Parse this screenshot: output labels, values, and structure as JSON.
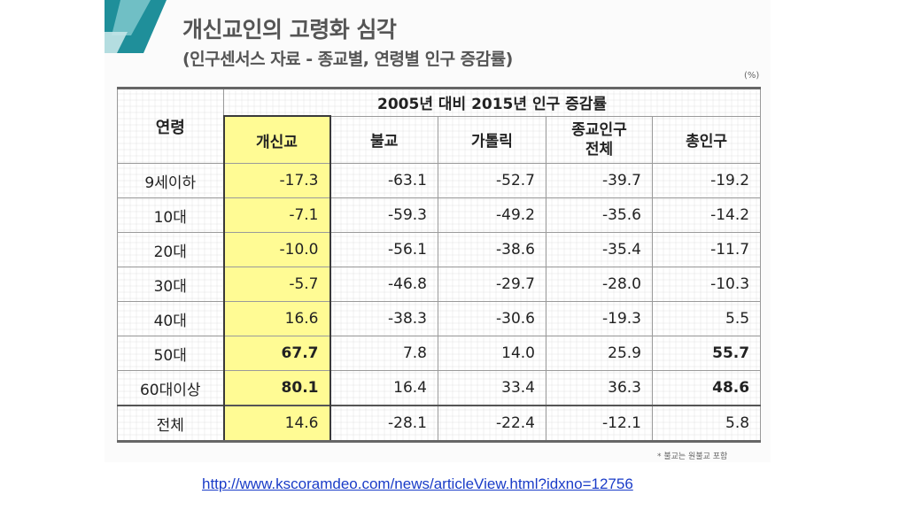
{
  "header": {
    "title": "개신교인의 고령화 심각",
    "subtitle": "(인구센서스 자료 - 종교별, 연령별 인구 증감률)",
    "unit": "(%)"
  },
  "table": {
    "age_header": "연령",
    "group_header": "2005년 대비 2015년 인구 증감률",
    "columns": [
      "개신교",
      "불교",
      "가톨릭",
      "종교인구 전체",
      "총인구"
    ],
    "rows": [
      {
        "age": "9세이하",
        "values": [
          "-17.3",
          "-63.1",
          "-52.7",
          "-39.7",
          "-19.2"
        ]
      },
      {
        "age": "10대",
        "values": [
          "-7.1",
          "-59.3",
          "-49.2",
          "-35.6",
          "-14.2"
        ]
      },
      {
        "age": "20대",
        "values": [
          "-10.0",
          "-56.1",
          "-38.6",
          "-35.4",
          "-11.7"
        ]
      },
      {
        "age": "30대",
        "values": [
          "-5.7",
          "-46.8",
          "-29.7",
          "-28.0",
          "-10.3"
        ]
      },
      {
        "age": "40대",
        "values": [
          "16.6",
          "-38.3",
          "-30.6",
          "-19.3",
          "5.5"
        ]
      },
      {
        "age": "50대",
        "values": [
          "67.7",
          "7.8",
          "14.0",
          "25.9",
          "55.7"
        ]
      },
      {
        "age": "60대이상",
        "values": [
          "80.1",
          "16.4",
          "33.4",
          "36.3",
          "48.6"
        ]
      },
      {
        "age": "전체",
        "values": [
          "14.6",
          "-28.1",
          "-22.4",
          "-12.1",
          "5.8"
        ]
      }
    ],
    "highlight_color": "#fffb94"
  },
  "footnote": "* 불교는 원불교 포함",
  "source_link": "http://www.kscoramdeo.com/news/articleView.html?idxno=12756"
}
